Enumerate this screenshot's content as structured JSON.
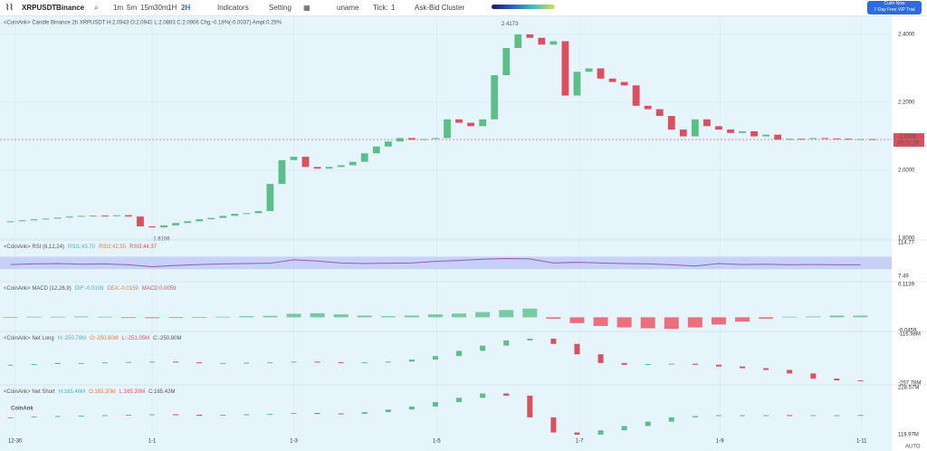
{
  "toolbar": {
    "symbol": "XRPUSDT",
    "exchange": "Binance",
    "intervals": [
      "1m",
      "5m",
      "15m",
      "30m",
      "1H",
      "2H"
    ],
    "indicators": "Indicators",
    "setting": "Setting",
    "user": "uname",
    "tick_label": "Tick:",
    "tick_value": "1",
    "cluster": "Ask-Bid Cluster",
    "promo": [
      "Cuim Now",
      "7-Day Free VIP Trial"
    ]
  },
  "chart_data": {
    "type": "candlestick",
    "legend": "<CoinAnk> Candle  Binance 2h XRPUSDT H:2.0943 O:2.0943 L:2.0883 C:2.0906 Chg:-0.18%(-0.0037) Ampl:0.29%",
    "open": 1.848,
    "close": [
      1.85,
      1.853,
      1.856,
      1.858,
      1.861,
      1.864,
      1.866,
      1.867,
      1.865,
      1.868,
      1.864,
      1.835,
      1.832,
      1.838,
      1.845,
      1.85,
      1.856,
      1.86,
      1.866,
      1.872,
      1.874,
      1.88,
      1.96,
      2.03,
      2.04,
      2.01,
      2.005,
      2.01,
      2.015,
      2.025,
      2.05,
      2.07,
      2.085,
      2.095,
      2.09,
      2.092,
      2.095,
      2.15,
      2.14,
      2.13,
      2.15,
      2.28,
      2.36,
      2.4,
      2.39,
      2.37,
      2.38,
      2.22,
      2.29,
      2.3,
      2.27,
      2.26,
      2.25,
      2.19,
      2.18,
      2.16,
      2.12,
      2.1,
      2.15,
      2.13,
      2.12,
      2.11,
      2.115,
      2.1,
      2.105,
      2.09,
      2.093,
      2.092,
      2.095,
      2.094,
      2.093,
      2.091,
      2.092,
      2.0906
    ],
    "up_color": "#5cbf8a",
    "down_color": "#d9505e",
    "ylim": [
      1.795,
      2.448
    ],
    "yticks": [
      {
        "value": 2.4,
        "label": "2.4000"
      },
      {
        "value": 2.2,
        "label": "2.2000"
      },
      {
        "value": 2.0,
        "label": "2.0000"
      },
      {
        "value": 1.8,
        "label": "1.8000"
      }
    ],
    "xlim": [
      -0.5,
      73.5
    ],
    "xticks": [
      {
        "value": 0.4,
        "label": "12-30"
      },
      {
        "value": 12,
        "label": "1-1"
      },
      {
        "value": 24,
        "label": "1-3"
      },
      {
        "value": 36.1,
        "label": "1-5"
      },
      {
        "value": 48.2,
        "label": "1-7"
      },
      {
        "value": 60.1,
        "label": "1-9"
      },
      {
        "value": 72.1,
        "label": "1-11"
      }
    ],
    "last_price": {
      "value": 2.0906,
      "label": "2.0906",
      "countdown": "00:22:29"
    },
    "high_note": {
      "value": 2.4173,
      "label": "2.4173",
      "index": 42.3
    },
    "low_note": {
      "value": 1.8106,
      "label": "1.8106",
      "index": 12.8
    },
    "scale_mode": "AUTO",
    "watermark": "CoinAnk",
    "indicators": [
      {
        "type": "line",
        "legend": "<CoinAnk> RSI (6,12,24)",
        "stats": [
          "RSI1:43.70",
          "RSI2:42.55",
          "RSI3:44.37"
        ],
        "color": "#9b59b6",
        "ylim": [
          7.49,
          114.77
        ],
        "yticks": [
          {
            "value": 114.77,
            "label": "114.77"
          },
          {
            "value": 7.49,
            "label": "7.49"
          }
        ],
        "values": [
          45,
          47,
          48,
          46,
          47,
          44,
          38,
          42,
          45,
          47,
          48,
          49,
          60,
          56,
          50,
          48,
          49,
          50,
          55,
          58,
          62,
          64,
          63,
          50,
          52,
          50,
          48,
          47,
          44,
          40,
          48,
          45,
          46,
          44,
          45,
          44,
          44
        ]
      },
      {
        "type": "histogram",
        "legend": "<CoinAnk> MACD (12,26,9)",
        "stats": [
          "DIF:-0.0109",
          "DEA:-0.0159",
          "MACD:0.0059"
        ],
        "up_color": "#5cbf8a",
        "down_color": "#e8505e",
        "ylim": [
          -0.0459,
          0.1139
        ],
        "yticks": [
          0.1139,
          -0.0459
        ],
        "values": [
          0.001,
          0.002,
          0.002,
          0.003,
          0.002,
          -0.001,
          -0.003,
          -0.002,
          0.001,
          0.002,
          0.004,
          0.005,
          0.012,
          0.014,
          0.01,
          0.006,
          0.004,
          0.006,
          0.01,
          0.013,
          0.018,
          0.025,
          0.03,
          -0.005,
          -0.02,
          -0.03,
          -0.035,
          -0.038,
          -0.04,
          -0.035,
          -0.025,
          -0.015,
          -0.005,
          0.002,
          0.003,
          0.006,
          0.0059
        ]
      },
      {
        "type": "steps",
        "legend": "<CoinAnk> Net Long",
        "stats": [
          "H:-250.79M",
          "O:-250.80M",
          "L:-251.05M",
          "C:-250.80M"
        ],
        "up_color": "#5cbf8a",
        "down_color": "#d9505e",
        "ylim": [
          -257.78,
          -116.98
        ],
        "yticks": [
          {
            "value": -116.98,
            "label": "-116.98M"
          },
          {
            "value": -257.78,
            "label": "-257.78M"
          }
        ],
        "values": [
          -205,
          -203,
          -200,
          -200,
          -198,
          -197,
          -196,
          -198,
          -200,
          -200,
          -199,
          -198,
          -196,
          -198,
          -200,
          -198,
          -196,
          -190,
          -180,
          -165,
          -150,
          -135,
          -130,
          -145,
          -175,
          -200,
          -205,
          -203,
          -202,
          -205,
          -210,
          -215,
          -220,
          -230,
          -245,
          -250,
          -250.8
        ]
      },
      {
        "type": "steps",
        "legend": "<CoinAnk> Net Short",
        "stats": [
          "H:165.46M",
          "O:165.30M",
          "L:165.30M",
          "C:165.43M"
        ],
        "up_color": "#5cbf8a",
        "down_color": "#d9505e",
        "ylim": [
          119.97,
          228.57
        ],
        "yticks": [
          {
            "value": 228.57,
            "label": "228.57M"
          },
          {
            "value": 119.97,
            "label": "119.97M"
          }
        ],
        "values": [
          160,
          162,
          163,
          164,
          165,
          166,
          167,
          166,
          165,
          166,
          167,
          168,
          170,
          169,
          168,
          172,
          178,
          185,
          195,
          205,
          215,
          210,
          160,
          125,
          120,
          130,
          140,
          150,
          160,
          163,
          165,
          165,
          165,
          164,
          165,
          165,
          165.43
        ]
      }
    ]
  }
}
